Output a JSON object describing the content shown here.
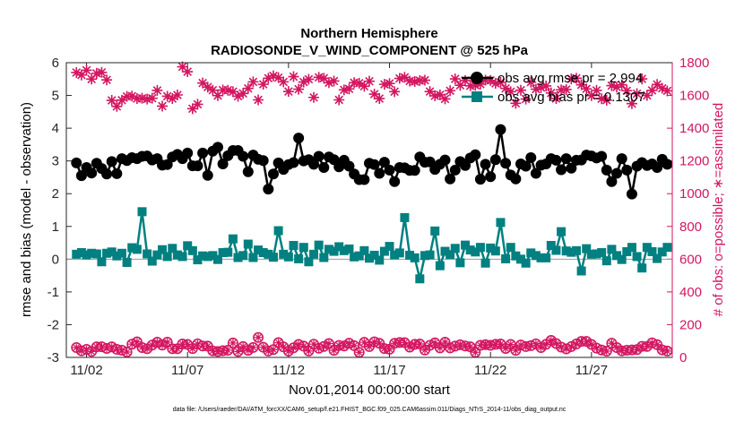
{
  "chart_data": {
    "type": "line",
    "title_line1": "Northern Hemisphere",
    "title_line2": "RADIOSONDE_V_WIND_COMPONENT @ 525 hPa",
    "xlabel": "Nov.01,2014 00:00:00 start",
    "ylabel_left": "rmse and bias (model - observation)",
    "ylabel_right": "# of obs: o=possible; ∗=assimilated",
    "footnote": "data file: /Users/raeder/DAI/ATM_forcXX/CAM6_setup/f.e21.FHIST_BGC.f09_025.CAM6assim.011/Diags_NTrS_2014-11/obs_diag_output.nc",
    "x_range": [
      0.5,
      30.5
    ],
    "x_ticks": [
      1.5,
      6.5,
      11.5,
      16.5,
      21.5,
      26.5
    ],
    "x_tick_labels": [
      "11/02",
      "11/07",
      "11/12",
      "11/17",
      "11/22",
      "11/27"
    ],
    "y_left_range": [
      -3,
      6
    ],
    "y_left_ticks": [
      "-3",
      "-2",
      "-1",
      "0",
      "1",
      "2",
      "3",
      "4",
      "5",
      "6"
    ],
    "y_right_range": [
      0,
      1800
    ],
    "y_right_ticks": [
      "0",
      "200",
      "400",
      "600",
      "800",
      "1000",
      "1200",
      "1400",
      "1600",
      "1800"
    ],
    "legend": [
      {
        "label": "obs avg rmse pr = 2.994"
      },
      {
        "label": "obs avg bias pr = 0.1307"
      }
    ],
    "colors": {
      "rmse": "#000000",
      "bias": "#008080",
      "nobs": "#d31660",
      "zero": "#9a9a9a"
    },
    "times": [
      1.0,
      1.25,
      1.5,
      1.75,
      2.0,
      2.25,
      2.5,
      2.75,
      3.0,
      3.25,
      3.5,
      3.75,
      4.0,
      4.25,
      4.5,
      4.75,
      5.0,
      5.25,
      5.5,
      5.75,
      6.0,
      6.25,
      6.5,
      6.75,
      7.0,
      7.25,
      7.5,
      7.75,
      8.0,
      8.25,
      8.5,
      8.75,
      9.0,
      9.25,
      9.5,
      9.75,
      10.0,
      10.25,
      10.5,
      10.75,
      11.0,
      11.25,
      11.5,
      11.75,
      12.0,
      12.25,
      12.5,
      12.75,
      13.0,
      13.25,
      13.5,
      13.75,
      14.0,
      14.25,
      14.5,
      14.75,
      15.0,
      15.25,
      15.5,
      15.75,
      16.0,
      16.25,
      16.5,
      16.75,
      17.0,
      17.25,
      17.5,
      17.75,
      18.0,
      18.25,
      18.5,
      18.75,
      19.0,
      19.25,
      19.5,
      19.75,
      20.0,
      20.25,
      20.5,
      20.75,
      21.0,
      21.25,
      21.5,
      21.75,
      22.0,
      22.25,
      22.5,
      22.75,
      23.0,
      23.25,
      23.5,
      23.75,
      24.0,
      24.25,
      24.5,
      24.75,
      25.0,
      25.25,
      25.5,
      25.75,
      26.0,
      26.25,
      26.5,
      26.75,
      27.0,
      27.25,
      27.5,
      27.75,
      28.0,
      28.25,
      28.5,
      28.75,
      29.0,
      29.25,
      29.5,
      29.75,
      30.0,
      30.25
    ],
    "rmse": [
      2.94,
      2.55,
      2.8,
      2.63,
      2.93,
      2.77,
      2.6,
      2.98,
      2.61,
      3.07,
      3.01,
      3.1,
      3.07,
      3.14,
      3.15,
      3.03,
      3.07,
      2.87,
      2.89,
      3.12,
      3.2,
      3.07,
      3.24,
      2.85,
      2.85,
      3.24,
      2.56,
      3.3,
      3.42,
      2.91,
      3.16,
      3.32,
      3.32,
      3.14,
      2.67,
      3.18,
      3.05,
      3.01,
      2.14,
      2.6,
      2.94,
      2.74,
      2.89,
      2.95,
      3.7,
      3.0,
      3.04,
      2.9,
      3.14,
      2.8,
      3.12,
      3.04,
      2.82,
      3.02,
      2.84,
      2.6,
      2.43,
      2.43,
      2.93,
      2.89,
      2.62,
      2.96,
      2.72,
      2.37,
      2.8,
      2.79,
      2.71,
      2.71,
      3.12,
      2.96,
      2.97,
      2.74,
      2.9,
      3.03,
      2.45,
      2.72,
      2.98,
      2.86,
      3.09,
      3.19,
      2.44,
      2.9,
      2.52,
      3.04,
      3.96,
      2.93,
      2.57,
      2.45,
      2.91,
      2.84,
      3.1,
      2.62,
      2.87,
      2.91,
      3.07,
      3.02,
      2.73,
      3.07,
      2.78,
      3.02,
      3.03,
      3.18,
      3.15,
      3.09,
      3.14,
      2.72,
      2.37,
      2.62,
      3.07,
      2.72,
      1.99,
      2.84,
      2.95,
      2.86,
      2.91,
      2.8,
      3.05,
      2.9
    ],
    "bias": [
      0.15,
      0.2,
      0.13,
      0.18,
      0.16,
      -0.08,
      0.18,
      0.22,
      0.1,
      0.18,
      -0.1,
      0.35,
      0.3,
      1.45,
      0.16,
      -0.06,
      0.13,
      0.29,
      0.08,
      0.33,
      0.13,
      0.08,
      0.41,
      0.26,
      -0.02,
      0.1,
      0.08,
      0.11,
      -0.01,
      0.2,
      0.21,
      0.62,
      0.05,
      0.11,
      0.46,
      0.05,
      0.28,
      0.2,
      0.15,
      0.06,
      0.87,
      0.15,
      0.07,
      0.42,
      0.01,
      0.36,
      -0.08,
      0.15,
      0.43,
      0.05,
      0.3,
      0.24,
      0.38,
      0.26,
      0.31,
      0.07,
      0.1,
      0.26,
      0.03,
      0.12,
      -0.03,
      0.24,
      0.39,
      0.13,
      0.19,
      1.27,
      0.12,
      0.04,
      -0.6,
      0.11,
      0.13,
      0.86,
      -0.2,
      0.24,
      0.14,
      0.33,
      -0.11,
      0.43,
      0.28,
      0.22,
      0.36,
      -0.12,
      0.34,
      0.25,
      1.12,
      0.01,
      0.36,
      0.1,
      0.0,
      -0.12,
      0.19,
      0.11,
      0.04,
      0.04,
      0.42,
      0.27,
      0.84,
      0.25,
      0.21,
      0.26,
      -0.36,
      0.32,
      0.15,
      0.16,
      0.2,
      -0.05,
      0.3,
      0.11,
      -0.01,
      0.23,
      0.36,
      0.08,
      -0.27,
      0.36,
      0.23,
      0.02,
      0.22,
      0.36
    ],
    "nobs_possible": [
      60,
      40,
      49,
      36,
      64,
      65,
      55,
      64,
      49,
      44,
      33,
      81,
      95,
      60,
      53,
      75,
      93,
      75,
      93,
      53,
      53,
      82,
      79,
      54,
      83,
      70,
      69,
      40,
      36,
      41,
      44,
      88,
      36,
      66,
      43,
      61,
      122,
      62,
      39,
      48,
      90,
      64,
      38,
      59,
      79,
      69,
      39,
      81,
      56,
      67,
      85,
      43,
      73,
      70,
      87,
      72,
      31,
      92,
      66,
      95,
      86,
      54,
      50,
      86,
      91,
      90,
      63,
      80,
      82,
      45,
      74,
      89,
      58,
      93,
      58,
      69,
      77,
      70,
      65,
      31,
      74,
      78,
      74,
      80,
      82,
      55,
      79,
      43,
      76,
      66,
      72,
      83,
      60,
      80,
      104,
      85,
      63,
      52,
      66,
      82,
      98,
      98,
      79,
      57,
      45,
      38,
      87,
      60,
      40,
      44,
      46,
      48,
      68,
      67,
      89,
      78,
      46,
      39
    ],
    "nobs_assimilated": [
      1740,
      1725,
      1754,
      1700,
      1735,
      1741,
      1695,
      1570,
      1533,
      1571,
      1594,
      1596,
      1581,
      1583,
      1578,
      1583,
      1631,
      1535,
      1595,
      1581,
      1603,
      1775,
      1745,
      1519,
      1546,
      1676,
      1651,
      1632,
      1599,
      1633,
      1632,
      1623,
      1595,
      1612,
      1643,
      1683,
      1573,
      1668,
      1705,
      1720,
      1709,
      1683,
      1624,
      1715,
      1638,
      1682,
      1699,
      1588,
      1711,
      1705,
      1678,
      1688,
      1573,
      1634,
      1640,
      1678,
      1675,
      1656,
      1687,
      1608,
      1581,
      1668,
      1673,
      1623,
      1704,
      1711,
      1688,
      1685,
      1691,
      1693,
      1624,
      1598,
      1604,
      1579,
      1629,
      1701,
      1662,
      1691,
      1659,
      1662,
      1669,
      1693,
      1692,
      1674,
      1680,
      1643,
      1623,
      1552,
      1632,
      1578,
      1681,
      1638,
      1648,
      1658,
      1615,
      1581,
      1634,
      1636,
      1701,
      1705,
      1665,
      1640,
      1599,
      1631,
      1580,
      1571,
      1660,
      1651,
      1665,
      1629,
      1550,
      1611,
      1701,
      1600,
      1631,
      1667,
      1644,
      1628
    ]
  }
}
